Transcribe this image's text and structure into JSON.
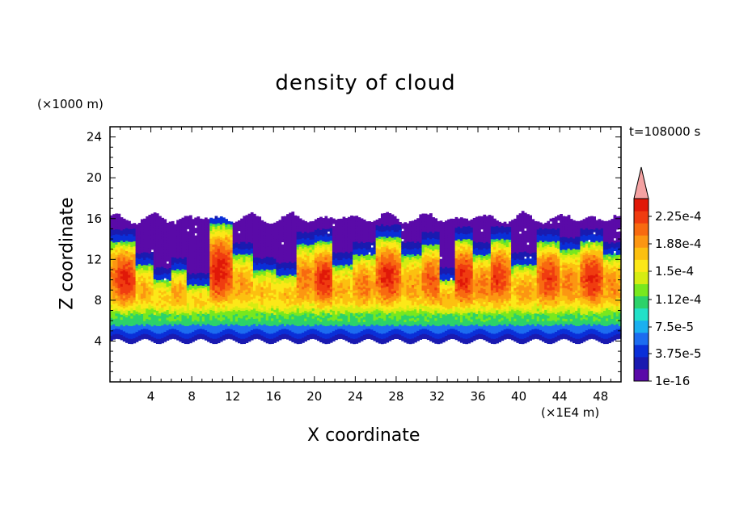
{
  "chart_data": {
    "type": "heatmap",
    "title": "density of cloud",
    "xlabel": "X coordinate",
    "ylabel": "Z coordinate",
    "x_unit": "(×1E4 m)",
    "y_unit": "(×1000 m)",
    "time_label": "t=108000 s",
    "xlim": [
      0,
      50
    ],
    "ylim": [
      0,
      25
    ],
    "x_ticks": [
      "4",
      "8",
      "12",
      "16",
      "20",
      "24",
      "28",
      "32",
      "36",
      "40",
      "44",
      "48"
    ],
    "y_ticks": [
      "4",
      "8",
      "12",
      "16",
      "20",
      "24"
    ],
    "colorbar": {
      "labels": [
        "1e-16",
        "3.75e-5",
        "7.5e-5",
        "1.12e-4",
        "1.5e-4",
        "1.88e-4",
        "2.25e-4"
      ],
      "colors": [
        "#5a0aa8",
        "#1a1ab0",
        "#0a2fd8",
        "#1c6cf0",
        "#1ab0f0",
        "#22e0c8",
        "#2cd26a",
        "#78e81e",
        "#d6ec12",
        "#fce818",
        "#fcc010",
        "#fc9612",
        "#f86a10",
        "#f03c10",
        "#e01808"
      ],
      "overflow_color": "#f4a2a2"
    },
    "cloud_layer": {
      "base_z": 4.2,
      "top_z": 16.3
    },
    "cells": [
      {
        "x": 1.5,
        "top": 13.8,
        "peak": 0.95
      },
      {
        "x": 3.3,
        "top": 11.5,
        "peak": 0.55
      },
      {
        "x": 5.2,
        "top": 10.0,
        "peak": 0.45
      },
      {
        "x": 6.6,
        "top": 11.0,
        "peak": 0.6
      },
      {
        "x": 8.6,
        "top": 9.5,
        "peak": 0.45
      },
      {
        "x": 10.8,
        "top": 15.5,
        "peak": 1.0
      },
      {
        "x": 13.0,
        "top": 12.5,
        "peak": 0.6
      },
      {
        "x": 15.2,
        "top": 11.0,
        "peak": 0.5
      },
      {
        "x": 17.5,
        "top": 10.5,
        "peak": 0.5
      },
      {
        "x": 19.0,
        "top": 13.5,
        "peak": 0.7
      },
      {
        "x": 21.0,
        "top": 13.8,
        "peak": 0.95
      },
      {
        "x": 22.6,
        "top": 11.5,
        "peak": 0.55
      },
      {
        "x": 24.8,
        "top": 12.5,
        "peak": 0.7
      },
      {
        "x": 27.2,
        "top": 14.2,
        "peak": 0.95
      },
      {
        "x": 29.6,
        "top": 12.5,
        "peak": 0.6
      },
      {
        "x": 31.5,
        "top": 13.5,
        "peak": 0.8
      },
      {
        "x": 32.8,
        "top": 10.0,
        "peak": 0.55
      },
      {
        "x": 34.6,
        "top": 14.0,
        "peak": 0.95
      },
      {
        "x": 36.5,
        "top": 12.5,
        "peak": 0.7
      },
      {
        "x": 38.0,
        "top": 14.0,
        "peak": 0.9
      },
      {
        "x": 40.6,
        "top": 11.5,
        "peak": 0.6
      },
      {
        "x": 43.0,
        "top": 13.8,
        "peak": 0.9
      },
      {
        "x": 45.0,
        "top": 13.0,
        "peak": 0.7
      },
      {
        "x": 47.2,
        "top": 13.8,
        "peak": 0.95
      },
      {
        "x": 49.2,
        "top": 12.5,
        "peak": 0.65
      }
    ]
  }
}
